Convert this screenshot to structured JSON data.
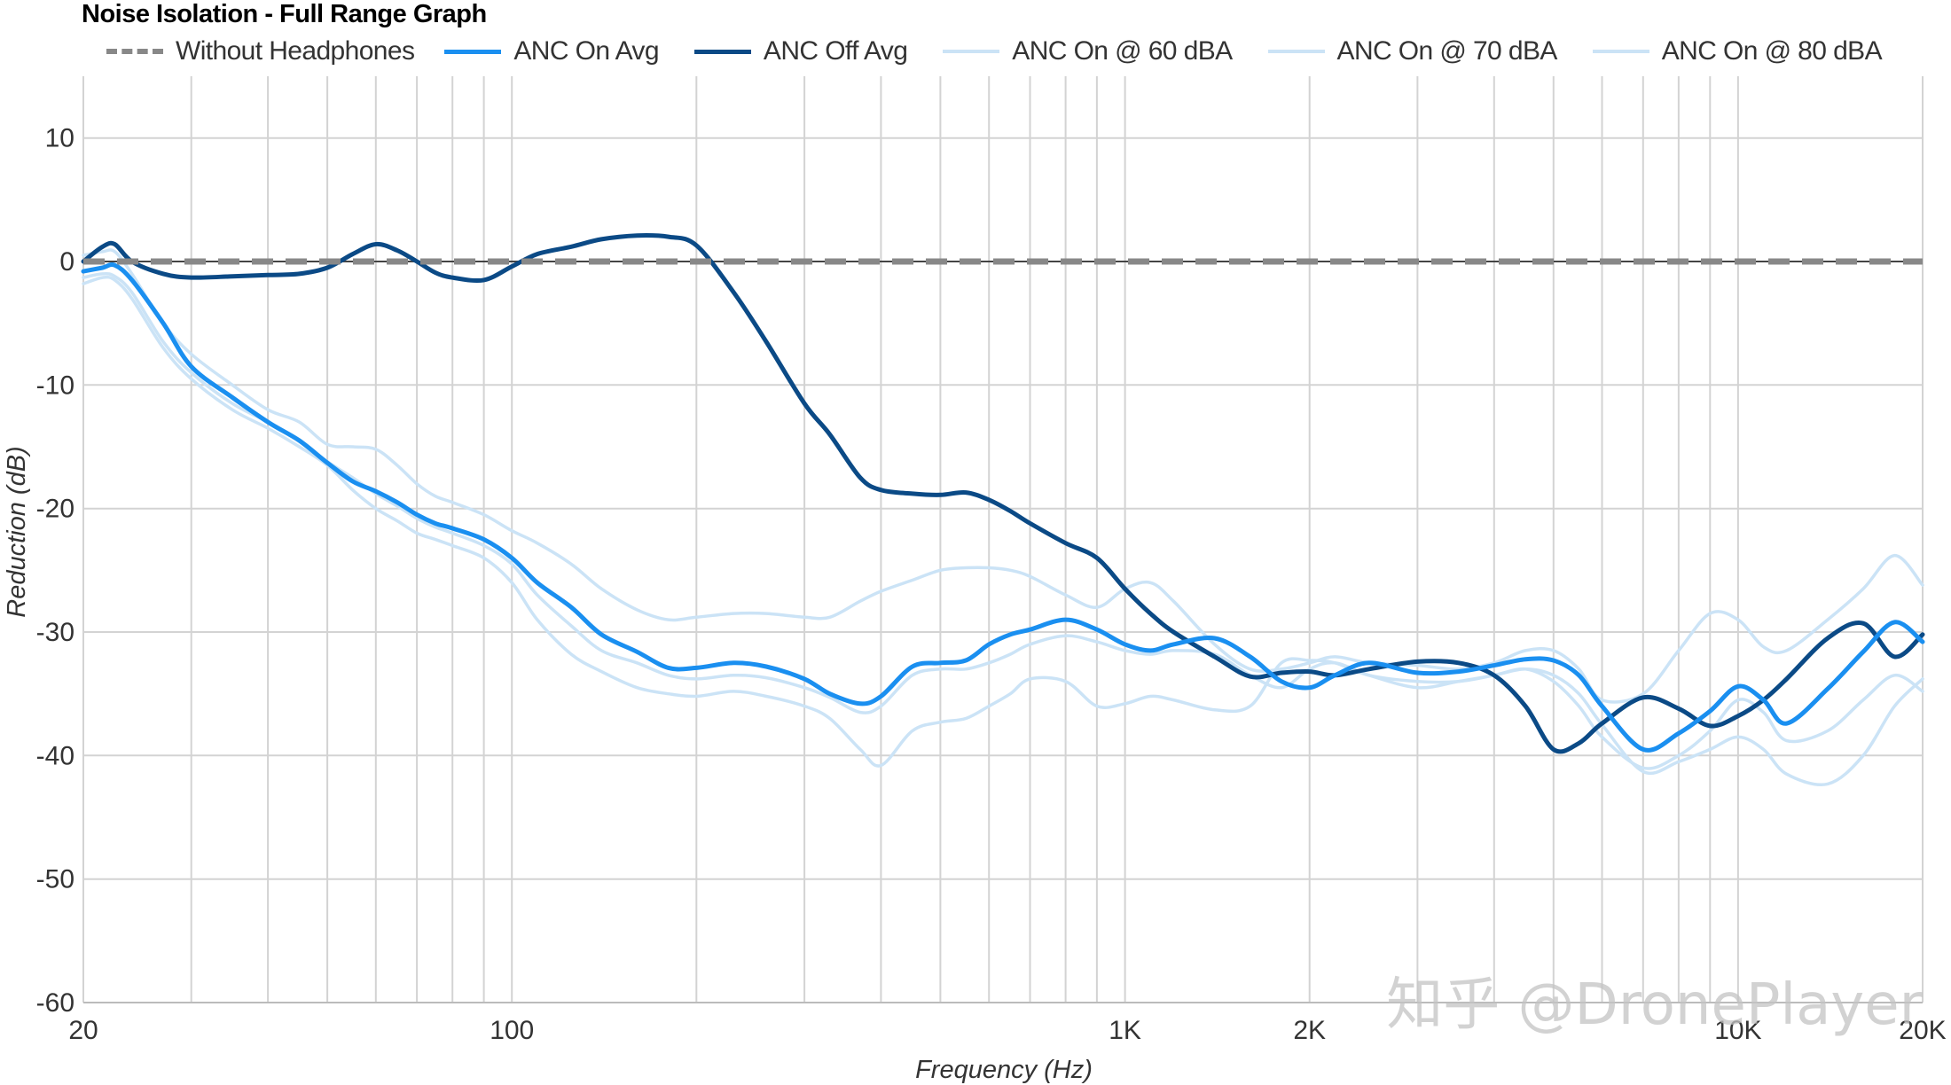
{
  "chart_data": {
    "type": "line",
    "title": "Noise Isolation - Full Range Graph",
    "xlabel": "Frequency (Hz)",
    "ylabel": "Reduction (dB)",
    "x_scale": "log",
    "xlim": [
      20,
      20000
    ],
    "ylim": [
      -60,
      15
    ],
    "x_ticks": [
      {
        "value": 20,
        "label": "20"
      },
      {
        "value": 100,
        "label": "100"
      },
      {
        "value": 1000,
        "label": "1K"
      },
      {
        "value": 2000,
        "label": "2K"
      },
      {
        "value": 10000,
        "label": "10K"
      },
      {
        "value": 20000,
        "label": "20K"
      }
    ],
    "y_ticks": [
      {
        "value": 10,
        "label": "10"
      },
      {
        "value": 0,
        "label": "0"
      },
      {
        "value": -10,
        "label": "-10"
      },
      {
        "value": -20,
        "label": "-20"
      },
      {
        "value": -30,
        "label": "-30"
      },
      {
        "value": -40,
        "label": "-40"
      },
      {
        "value": -50,
        "label": "-50"
      },
      {
        "value": -60,
        "label": "-60"
      }
    ],
    "grid": true,
    "legend_position": "top",
    "series": [
      {
        "name": "Without Headphones",
        "color": "#888888",
        "style": "dashed",
        "x": [
          20,
          20000
        ],
        "y": [
          0,
          0
        ]
      },
      {
        "name": "ANC On Avg",
        "color": "#1a8ff0",
        "style": "solid",
        "x": [
          20,
          21.5,
          22.5,
          24,
          27,
          30,
          35,
          40,
          45,
          50,
          55,
          60,
          65,
          70,
          75,
          80,
          90,
          100,
          110,
          125,
          140,
          160,
          180,
          200,
          230,
          260,
          300,
          330,
          370,
          400,
          450,
          500,
          550,
          600,
          650,
          700,
          800,
          900,
          1000,
          1100,
          1200,
          1400,
          1600,
          1800,
          2000,
          2200,
          2500,
          3000,
          3500,
          4000,
          4500,
          5000,
          5500,
          6000,
          7000,
          8000,
          9000,
          10000,
          11000,
          12000,
          14000,
          16000,
          18000,
          20000
        ],
        "y": [
          -0.8,
          -0.5,
          -0.3,
          -1.5,
          -5,
          -8.5,
          -11,
          -13,
          -14.5,
          -16.3,
          -17.8,
          -18.6,
          -19.5,
          -20.5,
          -21.2,
          -21.6,
          -22.5,
          -24,
          -26,
          -28,
          -30.2,
          -31.6,
          -32.9,
          -32.9,
          -32.5,
          -32.8,
          -33.8,
          -35,
          -35.8,
          -35.2,
          -32.8,
          -32.5,
          -32.3,
          -31,
          -30.2,
          -29.8,
          -29,
          -29.8,
          -31,
          -31.5,
          -31,
          -30.5,
          -32,
          -34,
          -34.5,
          -33.5,
          -32.5,
          -33.3,
          -33.2,
          -32.7,
          -32.2,
          -32.3,
          -33.5,
          -36,
          -39.5,
          -38.2,
          -36.4,
          -34.4,
          -35.5,
          -37.4,
          -34.6,
          -31.6,
          -29.2,
          -30.8
        ]
      },
      {
        "name": "ANC Off Avg",
        "color": "#0b4a86",
        "style": "solid",
        "x": [
          20,
          21.5,
          22.5,
          24,
          27,
          30,
          35,
          40,
          45,
          50,
          55,
          60,
          65,
          70,
          75,
          80,
          90,
          100,
          110,
          125,
          140,
          160,
          180,
          200,
          230,
          260,
          300,
          330,
          370,
          400,
          450,
          500,
          550,
          600,
          650,
          700,
          800,
          900,
          1000,
          1100,
          1200,
          1400,
          1600,
          1800,
          2000,
          2200,
          2500,
          3000,
          3500,
          4000,
          4500,
          5000,
          5500,
          6000,
          7000,
          8000,
          9000,
          10000,
          11000,
          12000,
          14000,
          16000,
          18000,
          20000
        ],
        "y": [
          0,
          1.2,
          1.4,
          0,
          -1,
          -1.3,
          -1.2,
          -1.1,
          -1,
          -0.5,
          0.6,
          1.4,
          0.9,
          0,
          -0.9,
          -1.3,
          -1.5,
          -0.4,
          0.6,
          1.2,
          1.8,
          2.1,
          2,
          1.3,
          -2.5,
          -6.5,
          -11.5,
          -14,
          -17.5,
          -18.5,
          -18.8,
          -18.9,
          -18.7,
          -19.3,
          -20.2,
          -21.2,
          -22.8,
          -24,
          -26.5,
          -28.5,
          -30,
          -32,
          -33.6,
          -33.3,
          -33.2,
          -33.5,
          -33,
          -32.4,
          -32.5,
          -33.5,
          -36,
          -39.5,
          -39,
          -37.4,
          -35.3,
          -36.2,
          -37.6,
          -36.8,
          -35.5,
          -33.8,
          -30.5,
          -29.3,
          -32,
          -30.2
        ]
      },
      {
        "name": "ANC On @ 60 dBA",
        "color": "#cbe3f6",
        "style": "solid",
        "x": [
          20,
          21.5,
          22.5,
          24,
          27,
          30,
          35,
          40,
          45,
          50,
          55,
          60,
          65,
          70,
          75,
          80,
          90,
          100,
          110,
          125,
          140,
          160,
          180,
          200,
          230,
          260,
          300,
          330,
          370,
          400,
          450,
          500,
          550,
          600,
          650,
          700,
          800,
          900,
          1000,
          1100,
          1200,
          1400,
          1600,
          1800,
          2000,
          2200,
          2500,
          3000,
          3500,
          4000,
          4500,
          5000,
          5500,
          6000,
          7000,
          8000,
          9000,
          10000,
          11000,
          12000,
          14000,
          16000,
          18000,
          20000
        ],
        "y": [
          -1.8,
          -1.3,
          -1.5,
          -3,
          -7,
          -9.5,
          -12,
          -13.5,
          -15,
          -16.5,
          -18.5,
          -20,
          -21,
          -22,
          -22.5,
          -23,
          -24,
          -26,
          -29,
          -31.8,
          -33.2,
          -34.5,
          -35,
          -35.2,
          -34.8,
          -35.2,
          -36,
          -37,
          -39.5,
          -40.8,
          -38,
          -37.3,
          -37,
          -36,
          -35,
          -33.8,
          -34,
          -36,
          -35.8,
          -35.2,
          -35.5,
          -36.3,
          -36,
          -32.5,
          -32.3,
          -32.5,
          -33.5,
          -34,
          -34,
          -33.5,
          -33,
          -33.5,
          -35,
          -37.5,
          -41.3,
          -40.5,
          -39.5,
          -38.5,
          -39.5,
          -41.5,
          -42.3,
          -40,
          -36,
          -33.8
        ]
      },
      {
        "name": "ANC On @ 70 dBA",
        "color": "#cbe3f6",
        "style": "solid",
        "x": [
          20,
          21.5,
          22.5,
          24,
          27,
          30,
          35,
          40,
          45,
          50,
          55,
          60,
          65,
          70,
          75,
          80,
          90,
          100,
          110,
          125,
          140,
          160,
          180,
          200,
          230,
          260,
          300,
          330,
          370,
          400,
          450,
          500,
          550,
          600,
          650,
          700,
          800,
          900,
          1000,
          1100,
          1200,
          1400,
          1600,
          1800,
          2000,
          2200,
          2500,
          3000,
          3500,
          4000,
          4500,
          5000,
          5500,
          6000,
          7000,
          8000,
          9000,
          10000,
          11000,
          12000,
          14000,
          16000,
          18000,
          20000
        ],
        "y": [
          -1.3,
          -1,
          -1.2,
          -2.5,
          -6.5,
          -9,
          -11.5,
          -13,
          -14.5,
          -16.2,
          -17.5,
          -18.8,
          -19.8,
          -20.8,
          -21.5,
          -22,
          -23,
          -24.5,
          -27,
          -29.5,
          -31.5,
          -32.5,
          -33.5,
          -33.8,
          -33.5,
          -33.7,
          -34.5,
          -35.3,
          -36.5,
          -36,
          -33.5,
          -33,
          -33,
          -32.5,
          -31.8,
          -31,
          -30.3,
          -30.8,
          -31.5,
          -31.8,
          -31.5,
          -31.8,
          -33.5,
          -34.5,
          -33,
          -32.5,
          -33.5,
          -34.5,
          -34,
          -33.5,
          -33,
          -34,
          -36,
          -38.5,
          -41,
          -40,
          -38,
          -35.5,
          -36.5,
          -38.8,
          -38,
          -35.5,
          -33.5,
          -34.8
        ]
      },
      {
        "name": "ANC On @ 80 dBA",
        "color": "#cbe3f6",
        "style": "solid",
        "x": [
          20,
          21.5,
          22.5,
          24,
          27,
          30,
          35,
          40,
          45,
          50,
          55,
          60,
          65,
          70,
          75,
          80,
          90,
          100,
          110,
          125,
          140,
          160,
          180,
          200,
          230,
          260,
          300,
          330,
          370,
          400,
          450,
          500,
          550,
          600,
          650,
          700,
          800,
          900,
          1000,
          1100,
          1200,
          1400,
          1600,
          1800,
          2000,
          2200,
          2500,
          3000,
          3500,
          4000,
          4500,
          5000,
          5500,
          6000,
          7000,
          8000,
          9000,
          10000,
          11000,
          12000,
          14000,
          16000,
          18000,
          20000
        ],
        "y": [
          0.5,
          0.8,
          0.8,
          -1,
          -5,
          -7.5,
          -10,
          -12,
          -13,
          -14.8,
          -15,
          -15.2,
          -16.5,
          -18,
          -19,
          -19.5,
          -20.5,
          -21.8,
          -22.8,
          -24.5,
          -26.5,
          -28.2,
          -29,
          -28.8,
          -28.5,
          -28.5,
          -28.8,
          -28.8,
          -27.5,
          -26.7,
          -25.8,
          -25,
          -24.8,
          -24.8,
          -25,
          -25.5,
          -27,
          -28,
          -26.5,
          -26,
          -27.5,
          -31,
          -33,
          -33,
          -32.5,
          -32,
          -32.5,
          -32.7,
          -33,
          -32.5,
          -31.5,
          -31.5,
          -33,
          -35.5,
          -35,
          -31.5,
          -28.5,
          -29,
          -31.2,
          -31.5,
          -29,
          -26.5,
          -23.8,
          -26.2
        ]
      }
    ]
  },
  "watermark": "知乎 @DronePlayer"
}
